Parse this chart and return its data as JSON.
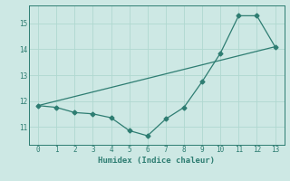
{
  "line1_x": [
    0,
    1,
    2,
    3,
    4,
    5,
    6,
    7,
    8,
    9,
    10,
    11,
    12,
    13
  ],
  "line1_y": [
    11.82,
    11.75,
    11.55,
    11.5,
    11.35,
    10.85,
    10.65,
    11.3,
    11.75,
    12.75,
    13.85,
    15.3,
    15.3,
    14.1
  ],
  "line2_x": [
    0,
    13
  ],
  "line2_y": [
    11.82,
    14.1
  ],
  "line_color": "#2e7d72",
  "marker": "D",
  "marker_size": 2.5,
  "xlabel": "Humidex (Indice chaleur)",
  "xlim": [
    -0.5,
    13.5
  ],
  "ylim": [
    10.3,
    15.7
  ],
  "yticks": [
    11,
    12,
    13,
    14,
    15
  ],
  "xticks": [
    0,
    1,
    2,
    3,
    4,
    5,
    6,
    7,
    8,
    9,
    10,
    11,
    12,
    13
  ],
  "bg_color": "#cde8e4",
  "grid_color": "#b0d8d0"
}
